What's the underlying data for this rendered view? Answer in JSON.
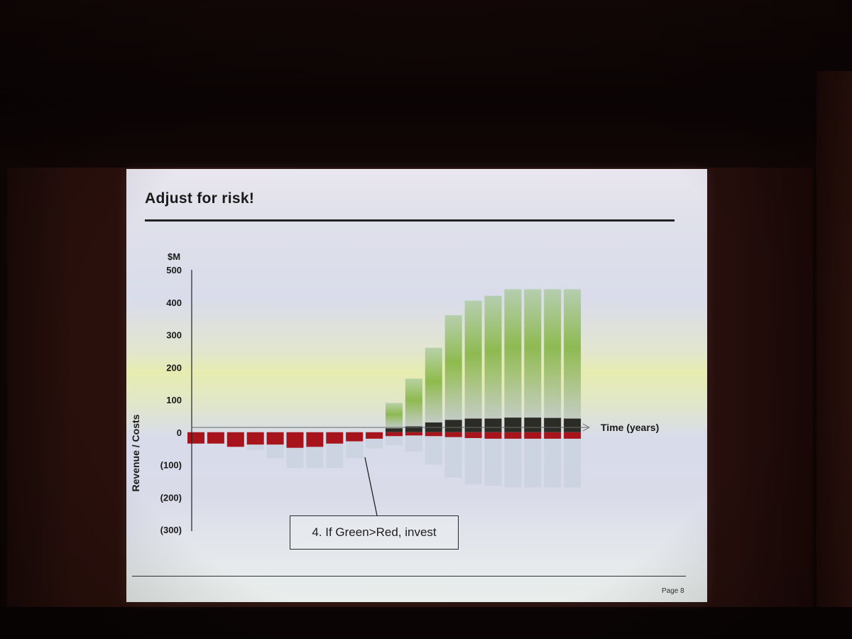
{
  "slide": {
    "title": "Adjust for risk!",
    "page": "Page 8",
    "callout": "4. If Green>Red, invest"
  },
  "colors": {
    "cost": "#a8141c",
    "revenue_base": "#2c2c26",
    "revenue_potential": "#7fb23a",
    "downside": "#c6d0dc"
  },
  "chart_data": {
    "type": "bar",
    "ylabel": "Revenue / Costs",
    "yunit": "$M",
    "xlabel": "Time (years)",
    "ylim": [
      -300,
      500
    ],
    "yticks": [
      500,
      400,
      300,
      200,
      100,
      0,
      -100,
      -200,
      -300
    ],
    "ytick_labels": [
      "500",
      "400",
      "300",
      "200",
      "100",
      "0",
      "(100)",
      "(200)",
      "(300)"
    ],
    "grid": false,
    "series": [
      {
        "values": [
          -35,
          -35,
          -45,
          -38,
          -38,
          -48,
          -45,
          -35,
          -28,
          -20,
          -12,
          -10,
          -12,
          -15,
          -18,
          -20,
          -20,
          -20,
          -20,
          -20
        ]
      },
      {
        "values": [
          0,
          0,
          0,
          0,
          0,
          0,
          0,
          0,
          0,
          0,
          12,
          18,
          30,
          38,
          42,
          42,
          45,
          45,
          44,
          42
        ]
      },
      {
        "values": [
          0,
          0,
          0,
          0,
          0,
          0,
          0,
          0,
          0,
          0,
          90,
          165,
          260,
          360,
          405,
          420,
          440,
          440,
          440,
          440
        ]
      },
      {
        "values": [
          -30,
          -30,
          -30,
          -55,
          -80,
          -110,
          -110,
          -110,
          -80,
          -50,
          -40,
          -60,
          -100,
          -140,
          -160,
          -165,
          -170,
          -170,
          -170,
          -170
        ]
      }
    ]
  }
}
